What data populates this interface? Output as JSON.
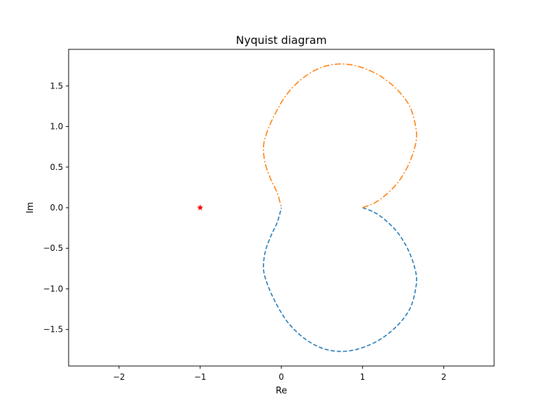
{
  "chart_data": {
    "type": "line",
    "title": "Nyquist diagram",
    "xlabel": "Re",
    "ylabel": "Im",
    "xlim": [
      -2.62,
      2.62
    ],
    "ylim": [
      -1.95,
      1.95
    ],
    "x_ticks": [
      {
        "value": -2,
        "label": "−2"
      },
      {
        "value": -1,
        "label": "−1"
      },
      {
        "value": 0,
        "label": "0"
      },
      {
        "value": 1,
        "label": "1"
      },
      {
        "value": 2,
        "label": "2"
      }
    ],
    "y_ticks": [
      {
        "value": -1.5,
        "label": "−1.5"
      },
      {
        "value": -1.0,
        "label": "−1.0"
      },
      {
        "value": -0.5,
        "label": "−0.5"
      },
      {
        "value": 0.0,
        "label": "0.0"
      },
      {
        "value": 0.5,
        "label": "0.5"
      },
      {
        "value": 1.0,
        "label": "1.0"
      },
      {
        "value": 1.5,
        "label": "1.5"
      }
    ],
    "grid": false,
    "series": [
      {
        "style": "dashed",
        "color": "#1f77b4",
        "x": [
          1.0,
          1.15,
          1.3,
          1.45,
          1.58,
          1.66,
          1.65,
          1.58,
          1.43,
          1.22,
          0.98,
          0.74,
          0.5,
          0.27,
          0.07,
          -0.08,
          -0.18,
          -0.22,
          -0.2,
          -0.13,
          -0.05,
          0.0
        ],
        "y": [
          0.0,
          -0.06,
          -0.17,
          -0.33,
          -0.56,
          -0.82,
          -1.02,
          -1.25,
          -1.45,
          -1.62,
          -1.73,
          -1.77,
          -1.73,
          -1.6,
          -1.4,
          -1.15,
          -0.92,
          -0.75,
          -0.55,
          -0.35,
          -0.18,
          0.0
        ]
      },
      {
        "style": "dashdot",
        "color": "#ff7f0e",
        "x": [
          1.0,
          1.15,
          1.3,
          1.45,
          1.58,
          1.66,
          1.65,
          1.58,
          1.43,
          1.22,
          0.98,
          0.74,
          0.5,
          0.27,
          0.07,
          -0.08,
          -0.18,
          -0.22,
          -0.2,
          -0.13,
          -0.05,
          0.0
        ],
        "y": [
          0.0,
          0.06,
          0.17,
          0.33,
          0.56,
          0.82,
          1.02,
          1.25,
          1.45,
          1.62,
          1.73,
          1.77,
          1.73,
          1.6,
          1.4,
          1.15,
          0.92,
          0.75,
          0.55,
          0.35,
          0.18,
          0.0
        ]
      }
    ],
    "markers": [
      {
        "x": -1,
        "y": 0,
        "symbol": "star",
        "color": "#ff0000"
      }
    ]
  }
}
